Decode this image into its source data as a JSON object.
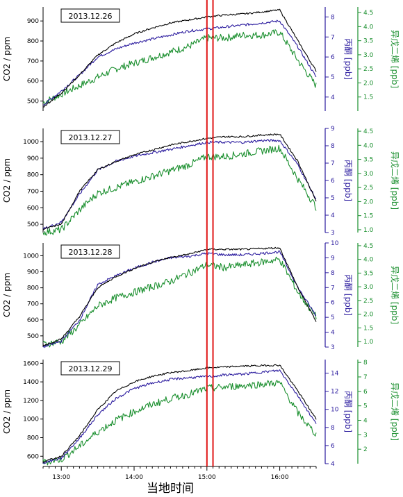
{
  "colors": {
    "co2": "#000000",
    "acetone": "#2a1a9e",
    "isoprene": "#1a8f2e",
    "marker": "#e01414"
  },
  "xaxis": {
    "label": "当地时间",
    "ticks": [
      "13:00",
      "14:00",
      "15:00",
      "16:00"
    ]
  },
  "markers": [
    "15:00",
    "15:05"
  ],
  "chart_data": [
    {
      "type": "line",
      "date": "2013.12.26",
      "ylabel_left": "CO2 / ppm",
      "ylabel_mid": "丙酮 [ppb]",
      "ylabel_right": "异戊二烯 [ppb]",
      "left_ticks": [
        500,
        600,
        700,
        800,
        900
      ],
      "mid_ticks": [
        4,
        5,
        6,
        7,
        8
      ],
      "right_ticks": [
        1.5,
        2.0,
        2.5,
        3.0,
        3.5,
        4.0,
        4.5
      ],
      "ylim_left": [
        450,
        970
      ],
      "ylim_mid": [
        3.3,
        8.5
      ],
      "ylim_right": [
        1.0,
        4.7
      ],
      "series": [
        {
          "name": "CO2",
          "axis": "left",
          "x": [
            "12:45",
            "13:00",
            "13:15",
            "13:30",
            "13:45",
            "14:00",
            "14:15",
            "14:30",
            "14:45",
            "15:00",
            "15:15",
            "15:30",
            "15:45",
            "16:00",
            "16:15",
            "16:30"
          ],
          "values": [
            470,
            540,
            630,
            730,
            790,
            835,
            865,
            890,
            905,
            920,
            930,
            935,
            945,
            955,
            800,
            650
          ]
        },
        {
          "name": "丙酮",
          "axis": "mid",
          "x": [
            "12:45",
            "13:00",
            "13:15",
            "13:30",
            "13:45",
            "14:00",
            "14:15",
            "14:30",
            "14:45",
            "15:00",
            "15:15",
            "15:30",
            "15:45",
            "16:00",
            "16:15",
            "16:30"
          ],
          "values": [
            3.6,
            4.3,
            5.1,
            6.0,
            6.4,
            6.7,
            6.9,
            7.1,
            7.3,
            7.4,
            7.5,
            7.6,
            7.7,
            7.8,
            6.5,
            5.0
          ]
        },
        {
          "name": "异戊二烯",
          "axis": "right",
          "x": [
            "12:45",
            "13:00",
            "13:15",
            "13:30",
            "13:45",
            "14:00",
            "14:15",
            "14:30",
            "14:45",
            "15:00",
            "15:15",
            "15:30",
            "15:45",
            "16:00",
            "16:15",
            "16:30"
          ],
          "values": [
            1.3,
            1.6,
            1.9,
            2.2,
            2.5,
            2.7,
            2.9,
            3.1,
            3.3,
            3.6,
            3.6,
            3.7,
            3.7,
            3.8,
            2.8,
            1.9
          ]
        }
      ]
    },
    {
      "type": "line",
      "date": "2013.12.27",
      "ylabel_left": "CO2 / ppm",
      "ylabel_mid": "丙酮 [ppb]",
      "ylabel_right": "异戊二烯 [ppb]",
      "left_ticks": [
        500,
        600,
        700,
        800,
        900,
        1000
      ],
      "mid_ticks": [
        3,
        4,
        5,
        6,
        7,
        8,
        9
      ],
      "right_ticks": [
        1.0,
        1.5,
        2.0,
        2.5,
        3.0,
        3.5,
        4.0,
        4.5
      ],
      "ylim_left": [
        450,
        1080
      ],
      "ylim_mid": [
        3,
        9
      ],
      "ylim_right": [
        0.9,
        4.6
      ],
      "series": [
        {
          "name": "CO2",
          "axis": "left",
          "x": [
            "12:45",
            "13:00",
            "13:15",
            "13:30",
            "13:45",
            "14:00",
            "14:15",
            "14:30",
            "14:45",
            "15:00",
            "15:15",
            "15:30",
            "15:45",
            "16:00",
            "16:15",
            "16:30"
          ],
          "values": [
            470,
            500,
            700,
            830,
            880,
            920,
            950,
            980,
            1000,
            1020,
            1030,
            1030,
            1040,
            1045,
            880,
            640
          ]
        },
        {
          "name": "丙酮",
          "axis": "mid",
          "x": [
            "12:45",
            "13:00",
            "13:15",
            "13:30",
            "13:45",
            "14:00",
            "14:15",
            "14:30",
            "14:45",
            "15:00",
            "15:15",
            "15:30",
            "15:45",
            "16:00",
            "16:15",
            "16:30"
          ],
          "values": [
            3.2,
            3.6,
            5.2,
            6.6,
            7.1,
            7.4,
            7.6,
            7.8,
            8.0,
            8.2,
            8.2,
            8.2,
            8.3,
            8.3,
            6.9,
            4.9
          ]
        },
        {
          "name": "异戊二烯",
          "axis": "right",
          "x": [
            "12:45",
            "13:00",
            "13:15",
            "13:30",
            "13:45",
            "14:00",
            "14:15",
            "14:30",
            "14:45",
            "15:00",
            "15:15",
            "15:30",
            "15:45",
            "16:00",
            "16:15",
            "16:30"
          ],
          "values": [
            0.9,
            1.0,
            1.7,
            2.3,
            2.5,
            2.7,
            2.9,
            3.1,
            3.3,
            3.6,
            3.6,
            3.7,
            3.8,
            3.9,
            2.8,
            1.8
          ]
        }
      ]
    },
    {
      "type": "line",
      "date": "2013.12.28",
      "ylabel_left": "CO2 / ppm",
      "ylabel_mid": "丙酮 [ppb]",
      "ylabel_right": "异戊二烯 [ppb]",
      "left_ticks": [
        500,
        600,
        700,
        800,
        900,
        1000
      ],
      "mid_ticks": [
        3,
        4,
        5,
        6,
        7,
        8,
        9,
        10
      ],
      "right_ticks": [
        1.0,
        1.5,
        2.0,
        2.5,
        3.0,
        3.5,
        4.0,
        4.5
      ],
      "ylim_left": [
        430,
        1080
      ],
      "ylim_mid": [
        3,
        10
      ],
      "ylim_right": [
        0.8,
        4.6
      ],
      "series": [
        {
          "name": "CO2",
          "axis": "left",
          "x": [
            "12:45",
            "13:00",
            "13:15",
            "13:30",
            "13:45",
            "14:00",
            "14:15",
            "14:30",
            "14:45",
            "15:00",
            "15:15",
            "15:30",
            "15:45",
            "16:00",
            "16:15",
            "16:30"
          ],
          "values": [
            440,
            480,
            620,
            800,
            870,
            920,
            960,
            990,
            1010,
            1040,
            1040,
            1040,
            1045,
            1050,
            800,
            590
          ]
        },
        {
          "name": "丙酮",
          "axis": "mid",
          "x": [
            "12:45",
            "13:00",
            "13:15",
            "13:30",
            "13:45",
            "14:00",
            "14:15",
            "14:30",
            "14:45",
            "15:00",
            "15:15",
            "15:30",
            "15:45",
            "16:00",
            "16:15",
            "16:30"
          ],
          "values": [
            3.0,
            3.4,
            4.8,
            7.2,
            7.8,
            8.3,
            8.7,
            9.0,
            9.1,
            9.3,
            9.2,
            9.2,
            9.3,
            9.4,
            7.0,
            5.1
          ]
        },
        {
          "name": "异戊二烯",
          "axis": "right",
          "x": [
            "12:45",
            "13:00",
            "13:15",
            "13:30",
            "13:45",
            "14:00",
            "14:15",
            "14:30",
            "14:45",
            "15:00",
            "15:15",
            "15:30",
            "15:45",
            "16:00",
            "16:15",
            "16:30"
          ],
          "values": [
            0.9,
            1.0,
            1.6,
            2.3,
            2.6,
            2.8,
            3.0,
            3.2,
            3.5,
            3.8,
            3.7,
            3.8,
            3.9,
            4.0,
            2.8,
            1.9
          ]
        }
      ]
    },
    {
      "type": "line",
      "date": "2013.12.29",
      "ylabel_left": "CO2 / ppm",
      "ylabel_mid": "丙酮 [ppb]",
      "ylabel_right": "异戊二烯 [ppb]",
      "left_ticks": [
        600,
        800,
        1000,
        1200,
        1400,
        1600
      ],
      "mid_ticks": [
        4,
        6,
        8,
        10,
        12,
        14
      ],
      "right_ticks": [
        2,
        3,
        4,
        5,
        6,
        7,
        8
      ],
      "ylim_left": [
        520,
        1640
      ],
      "ylim_mid": [
        4,
        15.5
      ],
      "ylim_right": [
        1.0,
        8.2
      ],
      "series": [
        {
          "name": "CO2",
          "axis": "left",
          "x": [
            "12:45",
            "13:00",
            "13:15",
            "13:30",
            "13:45",
            "14:00",
            "14:15",
            "14:30",
            "14:45",
            "15:00",
            "15:15",
            "15:30",
            "15:45",
            "16:00",
            "16:15",
            "16:30"
          ],
          "values": [
            540,
            600,
            820,
            1100,
            1300,
            1400,
            1460,
            1500,
            1520,
            1550,
            1560,
            1570,
            1575,
            1580,
            1300,
            1000
          ]
        },
        {
          "name": "丙酮",
          "axis": "mid",
          "x": [
            "12:45",
            "13:00",
            "13:15",
            "13:30",
            "13:45",
            "14:00",
            "14:15",
            "14:30",
            "14:45",
            "15:00",
            "15:15",
            "15:30",
            "15:45",
            "16:00",
            "16:15",
            "16:30"
          ],
          "values": [
            4.1,
            4.6,
            6.8,
            9.4,
            11.2,
            12.3,
            12.9,
            13.3,
            13.5,
            13.6,
            13.8,
            13.9,
            14.1,
            14.3,
            11.5,
            8.4
          ]
        },
        {
          "name": "异戊二烯",
          "axis": "right",
          "x": [
            "12:45",
            "13:00",
            "13:15",
            "13:30",
            "13:45",
            "14:00",
            "14:15",
            "14:30",
            "14:45",
            "15:00",
            "15:15",
            "15:30",
            "15:45",
            "16:00",
            "16:15",
            "16:30"
          ],
          "values": [
            1.1,
            1.3,
            2.2,
            3.2,
            4.0,
            4.6,
            5.1,
            5.5,
            5.8,
            6.2,
            6.3,
            6.4,
            6.5,
            6.6,
            4.5,
            3.0
          ]
        }
      ]
    }
  ]
}
